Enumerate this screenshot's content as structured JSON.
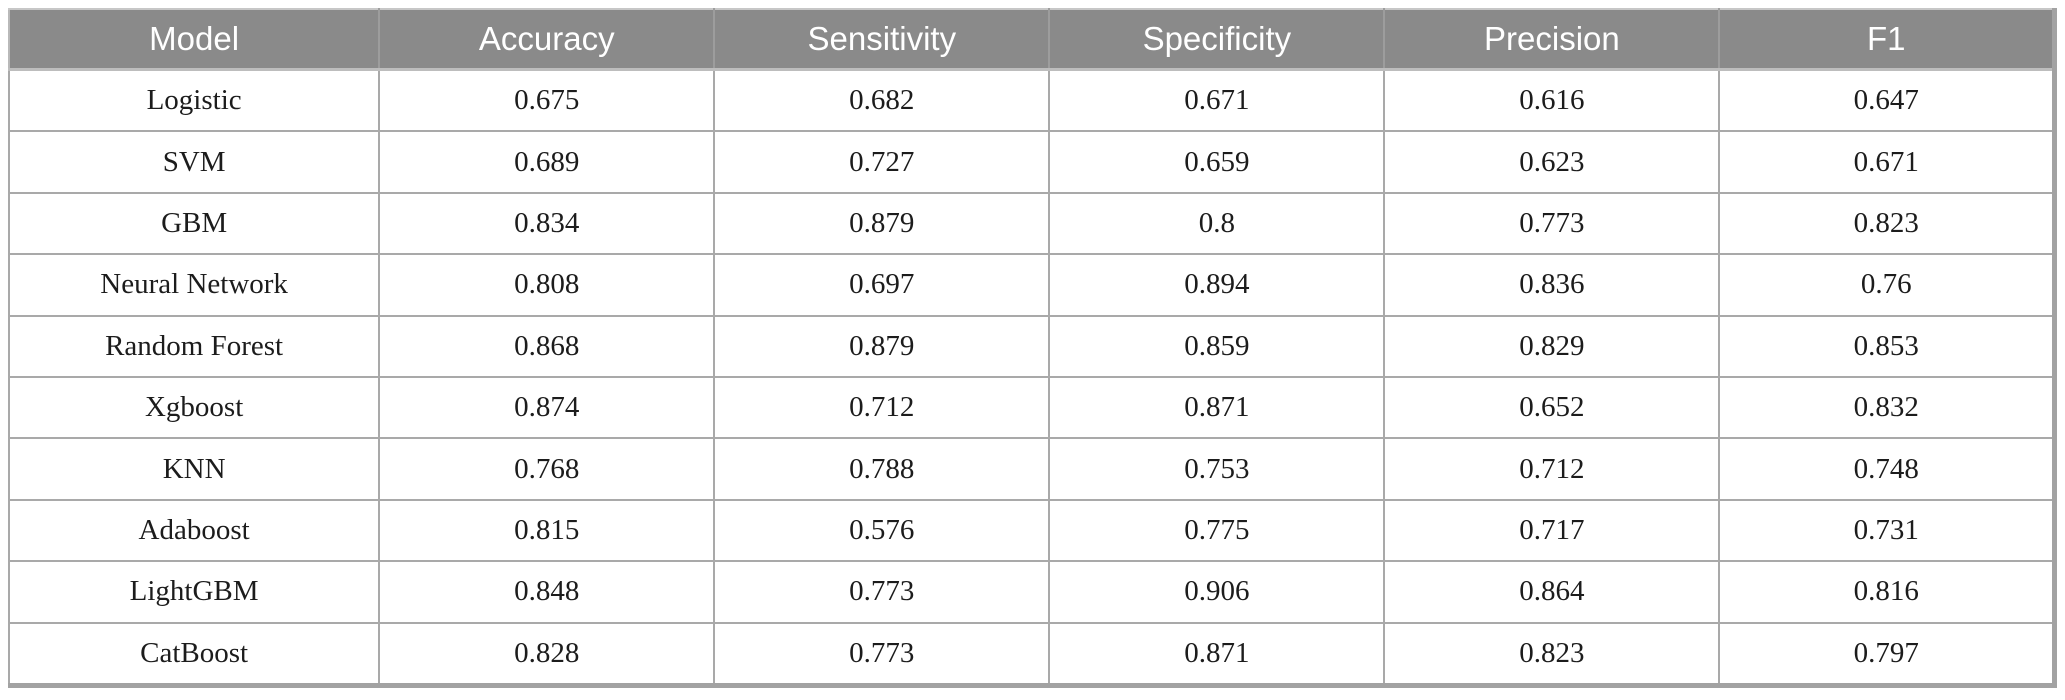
{
  "table": {
    "columns": [
      "Model",
      "Accuracy",
      "Sensitivity",
      "Specificity",
      "Precision",
      "F1"
    ],
    "rows": [
      {
        "model": "Logistic",
        "values": [
          "0.675",
          "0.682",
          "0.671",
          "0.616",
          "0.647"
        ]
      },
      {
        "model": "SVM",
        "values": [
          "0.689",
          "0.727",
          "0.659",
          "0.623",
          "0.671"
        ]
      },
      {
        "model": "GBM",
        "values": [
          "0.834",
          "0.879",
          "0.8",
          "0.773",
          "0.823"
        ]
      },
      {
        "model": "Neural Network",
        "values": [
          "0.808",
          "0.697",
          "0.894",
          "0.836",
          "0.76"
        ]
      },
      {
        "model": "Random Forest",
        "values": [
          "0.868",
          "0.879",
          "0.859",
          "0.829",
          "0.853"
        ]
      },
      {
        "model": "Xgboost",
        "values": [
          "0.874",
          "0.712",
          "0.871",
          "0.652",
          "0.832"
        ]
      },
      {
        "model": "KNN",
        "values": [
          "0.768",
          "0.788",
          "0.753",
          "0.712",
          "0.748"
        ]
      },
      {
        "model": "Adaboost",
        "values": [
          "0.815",
          "0.576",
          "0.775",
          "0.717",
          "0.731"
        ]
      },
      {
        "model": "LightGBM",
        "values": [
          "0.848",
          "0.773",
          "0.906",
          "0.864",
          "0.816"
        ]
      },
      {
        "model": "CatBoost",
        "values": [
          "0.828",
          "0.773",
          "0.871",
          "0.823",
          "0.797"
        ]
      }
    ]
  },
  "colors": {
    "header_bg": "#8a8a8a",
    "header_text": "#ffffff",
    "body_bg": "#ffffff",
    "body_text": "#1c1c1c",
    "border": "#a9a9a9"
  },
  "chart_data": {
    "type": "table",
    "title": "",
    "categories": [
      "Logistic",
      "SVM",
      "GBM",
      "Neural Network",
      "Random Forest",
      "Xgboost",
      "KNN",
      "Adaboost",
      "LightGBM",
      "CatBoost"
    ],
    "series": [
      {
        "name": "Accuracy",
        "values": [
          0.675,
          0.689,
          0.834,
          0.808,
          0.868,
          0.874,
          0.768,
          0.815,
          0.848,
          0.828
        ]
      },
      {
        "name": "Sensitivity",
        "values": [
          0.682,
          0.727,
          0.879,
          0.697,
          0.879,
          0.712,
          0.788,
          0.576,
          0.773,
          0.773
        ]
      },
      {
        "name": "Specificity",
        "values": [
          0.671,
          0.659,
          0.8,
          0.894,
          0.859,
          0.871,
          0.753,
          0.775,
          0.906,
          0.871
        ]
      },
      {
        "name": "Precision",
        "values": [
          0.616,
          0.623,
          0.773,
          0.836,
          0.829,
          0.652,
          0.712,
          0.717,
          0.864,
          0.823
        ]
      },
      {
        "name": "F1",
        "values": [
          0.647,
          0.671,
          0.823,
          0.76,
          0.853,
          0.832,
          0.748,
          0.731,
          0.816,
          0.797
        ]
      }
    ]
  }
}
